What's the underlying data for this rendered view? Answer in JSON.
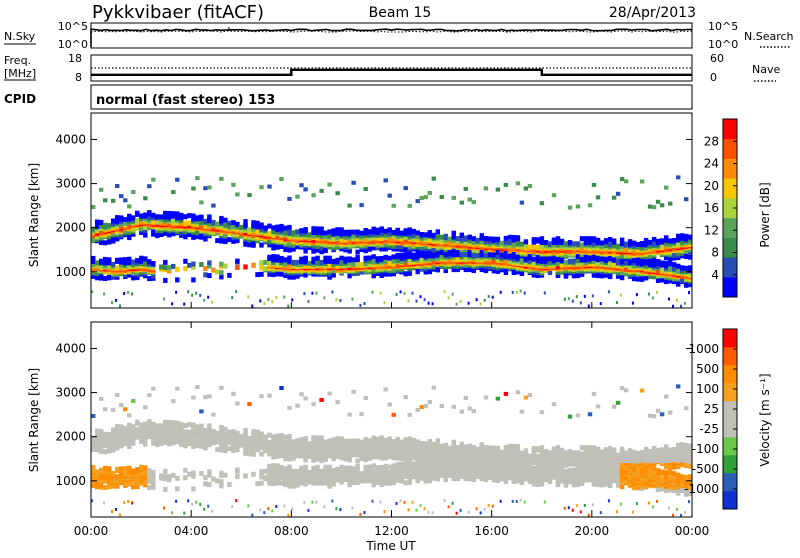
{
  "header": {
    "station": "Pykkvibaer (fitACF)",
    "beam": "Beam 15",
    "date": "28/Apr/2013"
  },
  "strip_noise": {
    "left_label": "N.Sky",
    "left_ticks": [
      "10^5",
      "10^0"
    ],
    "right_label": "N.Search",
    "right_ticks": [
      "10^5",
      "10^0"
    ]
  },
  "strip_freq": {
    "left_label_1": "Freq.",
    "left_label_2": "[MHz]",
    "left_ticks": [
      "18",
      "8"
    ],
    "right_label": "Nave",
    "right_ticks": [
      "60",
      "0"
    ]
  },
  "cpid": {
    "label": "CPID",
    "mode_text": "normal (fast stereo) 153"
  },
  "power_panel": {
    "ylabel": "Slant Range [km]",
    "yticks": [
      "4000",
      "3000",
      "2000",
      "1000"
    ],
    "colorbar_label": "Power [dB]",
    "colorbar_ticks": [
      "28",
      "24",
      "20",
      "16",
      "12",
      "8",
      "4"
    ],
    "colors": [
      "#0000ff",
      "#2a4db5",
      "#3a8a4a",
      "#5aa55a",
      "#aad23c",
      "#f5c800",
      "#ff8c00",
      "#ff5000",
      "#ff0000"
    ]
  },
  "velocity_panel": {
    "ylabel": "Slant Range [km]",
    "yticks": [
      "4000",
      "3000",
      "2000",
      "1000"
    ],
    "colorbar_label": "Velocity [m s⁻¹]",
    "colorbar_ticks": [
      "1000",
      "500",
      "100",
      "25",
      "-25",
      "-100",
      "-500",
      "-1000"
    ],
    "colors": [
      "#1030d0",
      "#2a5fb5",
      "#2fa03a",
      "#6cc84a",
      "#c0c0b8",
      "#c0c0b8",
      "#f5a020",
      "#ff8c00",
      "#ff5a00",
      "#ff0000"
    ],
    "ground_scatter": "#c0c0b8"
  },
  "time_axis": {
    "label": "Time UT",
    "ticks": [
      "00:00",
      "04:00",
      "08:00",
      "12:00",
      "16:00",
      "20:00",
      "00:00"
    ]
  },
  "chart_data": {
    "type": "heatmap",
    "title": "Pykkvibaer (fitACF)  Beam 15  28/Apr/2013",
    "xlabel": "Time UT",
    "x_range_hours": [
      0,
      24
    ],
    "x_ticks": [
      "00:00",
      "04:00",
      "08:00",
      "12:00",
      "16:00",
      "20:00",
      "00:00"
    ],
    "ylabel": "Slant Range [km]",
    "ylim_km": [
      180,
      4600
    ],
    "noise_ylim": [
      "10^0",
      "10^5"
    ],
    "freq_ylim": [
      8,
      18
    ],
    "nave_ylim": [
      0,
      60
    ],
    "cpid": "normal (fast stereo) 153",
    "freq_steps": [
      {
        "from_h": 0.0,
        "to_h": 8.0,
        "MHz": 10.4
      },
      {
        "from_h": 8.0,
        "to_h": 18.0,
        "MHz": 12.3
      },
      {
        "from_h": 18.0,
        "to_h": 24.0,
        "MHz": 10.4
      }
    ],
    "power_colorbar": {
      "unit": "dB",
      "ticks": [
        4,
        8,
        12,
        16,
        20,
        24,
        28
      ]
    },
    "velocity_colorbar": {
      "unit": "m s^-1",
      "ticks": [
        1000,
        500,
        100,
        25,
        -25,
        -100,
        -500,
        -1000
      ]
    },
    "scatter_bands": [
      {
        "name": "main echo band",
        "points": [
          [
            0,
            1900
          ],
          [
            2,
            2150
          ],
          [
            4,
            2100
          ],
          [
            6,
            1950
          ],
          [
            8,
            1800
          ],
          [
            10,
            1750
          ],
          [
            12,
            1780
          ],
          [
            14,
            1700
          ],
          [
            16,
            1600
          ],
          [
            18,
            1550
          ],
          [
            20,
            1550
          ],
          [
            22,
            1500
          ],
          [
            24,
            1650
          ]
        ],
        "width_km": 380,
        "power_dB": 24
      },
      {
        "name": "lower band",
        "points": [
          [
            0,
            1150
          ],
          [
            1,
            1100
          ],
          [
            2,
            1150
          ],
          [
            3,
            1050
          ],
          [
            7,
            1200
          ],
          [
            8,
            1150
          ],
          [
            10,
            1150
          ],
          [
            12,
            1200
          ],
          [
            14,
            1300
          ],
          [
            16,
            1300
          ],
          [
            18,
            1150
          ],
          [
            20,
            1200
          ],
          [
            22,
            1100
          ],
          [
            24,
            950
          ]
        ],
        "width_km": 320,
        "power_dB": 26
      }
    ],
    "velocity_regions": [
      {
        "from_h": 0.0,
        "to_h": 2.2,
        "range_km": [
          800,
          1600
        ],
        "velocity": "-100 to -500 m/s"
      },
      {
        "from_h": 21.2,
        "to_h": 24.0,
        "range_km": [
          900,
          1500
        ],
        "velocity": "-100 to -500 m/s"
      }
    ]
  }
}
